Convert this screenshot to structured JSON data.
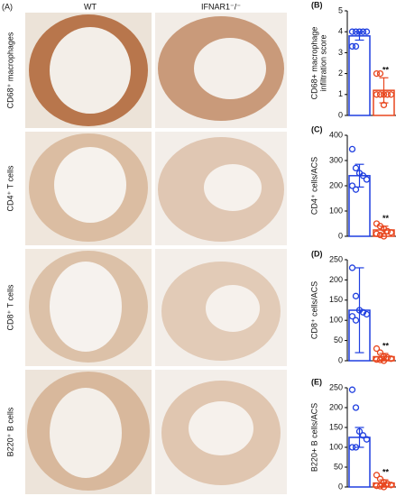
{
  "figure": {
    "panel": "(A)",
    "columns": [
      "WT",
      "IFNAR1⁻/⁻"
    ],
    "rows": [
      "CD68⁺ macrophages",
      "CD4⁺ T cells",
      "CD8⁺ T cells",
      "B220⁺ B cells"
    ]
  },
  "chart_data": [
    {
      "type": "bar",
      "panel": "(B)",
      "ylabel": [
        "CD68+ macrophage",
        "infiltration score"
      ],
      "categories": [
        null,
        null
      ],
      "values": [
        3.8,
        1.2
      ],
      "errors": [
        0.2,
        0.6
      ],
      "colors": [
        "#1f3fe0",
        "#e8461e"
      ],
      "points": [
        [
          4,
          4,
          4,
          4,
          4,
          3.3,
          3.3
        ],
        [
          1,
          1,
          1,
          1,
          1,
          2,
          2,
          0.5
        ]
      ],
      "annotation": "**",
      "ylim": [
        0,
        5
      ],
      "yticks": [
        0,
        1,
        2,
        3,
        4,
        5
      ]
    },
    {
      "type": "bar",
      "panel": "(C)",
      "ylabel": [
        "CD4⁺ cells/ACS"
      ],
      "categories": [
        null,
        null
      ],
      "values": [
        240,
        25
      ],
      "errors": [
        45,
        15
      ],
      "colors": [
        "#1f3fe0",
        "#e8461e"
      ],
      "points": [
        [
          345,
          270,
          250,
          240,
          225,
          200,
          185
        ],
        [
          50,
          40,
          30,
          20,
          15,
          10,
          5,
          0
        ]
      ],
      "annotation": "**",
      "ylim": [
        0,
        400
      ],
      "yticks": [
        0,
        100,
        200,
        300,
        400
      ]
    },
    {
      "type": "bar",
      "panel": "(D)",
      "ylabel": [
        "CD8⁺ cells/ACS"
      ],
      "categories": [
        null,
        null
      ],
      "values": [
        125,
        10
      ],
      "errors": [
        105,
        8
      ],
      "colors": [
        "#1f3fe0",
        "#e8461e"
      ],
      "points": [
        [
          230,
          160,
          125,
          120,
          115,
          110,
          100
        ],
        [
          30,
          20,
          10,
          8,
          5,
          3,
          2,
          0
        ]
      ],
      "annotation": "**",
      "ylim": [
        0,
        250
      ],
      "yticks": [
        0,
        50,
        100,
        150,
        200,
        250
      ]
    },
    {
      "type": "bar",
      "panel": "(E)",
      "ylabel": [
        "B220+ B cells/ACS"
      ],
      "categories": [
        null,
        null
      ],
      "values": [
        125,
        10
      ],
      "errors": [
        25,
        8
      ],
      "colors": [
        "#1f3fe0",
        "#e8461e"
      ],
      "points": [
        [
          245,
          200,
          140,
          130,
          120,
          100,
          100
        ],
        [
          30,
          20,
          12,
          8,
          5,
          3,
          2,
          0
        ]
      ],
      "annotation": "**",
      "ylim": [
        0,
        250
      ],
      "yticks": [
        0,
        50,
        100,
        150,
        200,
        250
      ]
    }
  ]
}
